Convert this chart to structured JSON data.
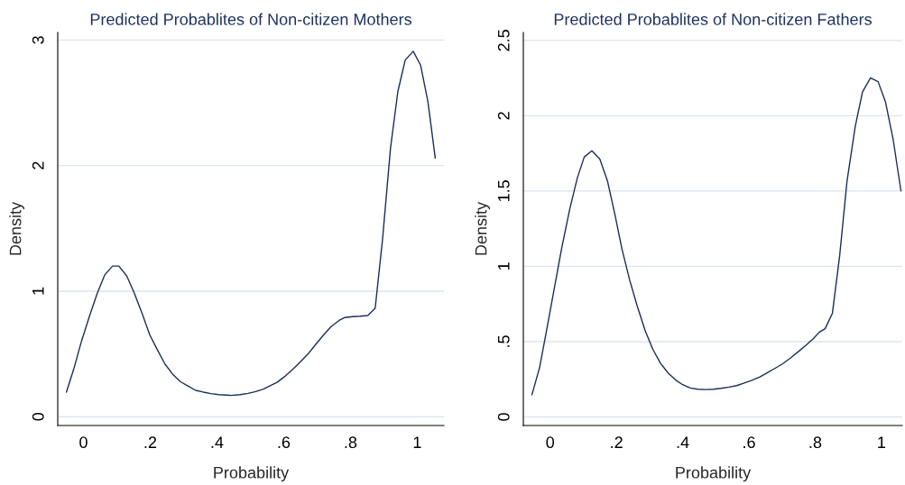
{
  "chart_data": [
    {
      "type": "line",
      "title": "Predicted Probablites of Non-citizen Mothers",
      "xlabel": "Probability",
      "ylabel": "Density",
      "xlim": [
        -0.077,
        1.08
      ],
      "ylim": [
        -0.07,
        3.06
      ],
      "xticks": [
        0,
        {
          "value": 0.2,
          "label": ".2"
        },
        {
          "value": 0.4,
          "label": ".4"
        },
        {
          "value": 0.6,
          "label": ".6"
        },
        {
          "value": 0.8,
          "label": ".8"
        },
        1
      ],
      "yticks": [
        0,
        1,
        2,
        3
      ],
      "grid": "y",
      "legend": false,
      "series": [
        {
          "color": "#1a2e5a",
          "x": [
            -0.051,
            -0.029,
            -0.006,
            0.018,
            0.041,
            0.064,
            0.087,
            0.106,
            0.13,
            0.153,
            0.176,
            0.199,
            0.222,
            0.244,
            0.267,
            0.29,
            0.313,
            0.336,
            0.359,
            0.382,
            0.405,
            0.428,
            0.442,
            0.47,
            0.493,
            0.516,
            0.539,
            0.562,
            0.58,
            0.603,
            0.626,
            0.649,
            0.673,
            0.696,
            0.719,
            0.742,
            0.765,
            0.783,
            0.806,
            0.829,
            0.852,
            0.874,
            0.896,
            0.92,
            0.942,
            0.964,
            0.988,
            1.01,
            1.032,
            1.054
          ],
          "values": [
            0.196,
            0.38,
            0.6,
            0.8,
            0.98,
            1.13,
            1.2,
            1.2,
            1.12,
            0.98,
            0.82,
            0.65,
            0.53,
            0.42,
            0.34,
            0.28,
            0.245,
            0.21,
            0.196,
            0.184,
            0.176,
            0.172,
            0.17,
            0.176,
            0.186,
            0.2,
            0.22,
            0.25,
            0.274,
            0.32,
            0.375,
            0.434,
            0.5,
            0.576,
            0.65,
            0.718,
            0.765,
            0.79,
            0.797,
            0.8,
            0.806,
            0.863,
            1.41,
            2.14,
            2.59,
            2.84,
            2.91,
            2.8,
            2.51,
            2.06
          ]
        }
      ]
    },
    {
      "type": "line",
      "title": "Predicted Probablites of Non-citizen Fathers",
      "xlabel": "Probability",
      "ylabel": "Density",
      "xlim": [
        -0.081,
        1.063
      ],
      "ylim": [
        -0.057,
        2.553
      ],
      "xticks": [
        0,
        {
          "value": 0.2,
          "label": ".2"
        },
        {
          "value": 0.4,
          "label": ".4"
        },
        {
          "value": 0.6,
          "label": ".6"
        },
        {
          "value": 0.8,
          "label": ".8"
        },
        1
      ],
      "yticks": [
        0,
        {
          "value": 0.5,
          "label": ".5"
        },
        1,
        1.5,
        2,
        2.5
      ],
      "grid": "y",
      "legend": false,
      "series": [
        {
          "color": "#1a2e5a",
          "x": [
            -0.055,
            -0.032,
            -0.011,
            0.012,
            0.035,
            0.059,
            0.082,
            0.103,
            0.126,
            0.15,
            0.173,
            0.196,
            0.217,
            0.24,
            0.263,
            0.287,
            0.31,
            0.333,
            0.356,
            0.379,
            0.4,
            0.423,
            0.445,
            0.47,
            0.493,
            0.516,
            0.54,
            0.563,
            0.586,
            0.609,
            0.633,
            0.656,
            0.679,
            0.702,
            0.726,
            0.749,
            0.772,
            0.795,
            0.812,
            0.83,
            0.852,
            0.874,
            0.896,
            0.921,
            0.943,
            0.967,
            0.99,
            1.012,
            1.035,
            1.059
          ],
          "values": [
            0.147,
            0.327,
            0.572,
            0.848,
            1.123,
            1.379,
            1.587,
            1.726,
            1.767,
            1.712,
            1.567,
            1.338,
            1.113,
            0.909,
            0.735,
            0.572,
            0.449,
            0.357,
            0.292,
            0.245,
            0.214,
            0.192,
            0.184,
            0.182,
            0.184,
            0.19,
            0.198,
            0.208,
            0.225,
            0.243,
            0.266,
            0.294,
            0.323,
            0.353,
            0.392,
            0.433,
            0.476,
            0.521,
            0.562,
            0.586,
            0.688,
            1.072,
            1.563,
            1.93,
            2.159,
            2.251,
            2.226,
            2.094,
            1.848,
            1.501
          ]
        }
      ]
    }
  ]
}
